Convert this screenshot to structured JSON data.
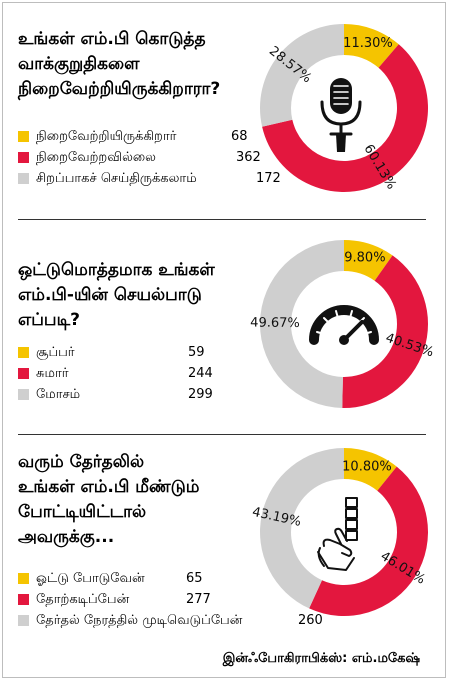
{
  "colors": {
    "yellow": "#f5c400",
    "red": "#e3173e",
    "gray": "#cfcfcf"
  },
  "chart_data": [
    {
      "type": "pie",
      "title": "உங்கள் எம்.பி கொடுத்த\nவாக்குறுதிகளை\nநிறைவேற்றியிருக்கிறாரா?",
      "icon": "microphone-icon",
      "slices": [
        {
          "label": "நிறைவேற்றியிருக்கிறார்",
          "value": 68,
          "percent_label": "11.30%",
          "color": "#f5c400"
        },
        {
          "label": "நிறைவேற்றவில்லை",
          "value": 362,
          "percent_label": "60.13%",
          "color": "#e3173e"
        },
        {
          "label": "சிறப்பாகச் செய்திருக்கலாம்",
          "value": 172,
          "percent_label": "28.57%",
          "color": "#cfcfcf"
        }
      ]
    },
    {
      "type": "pie",
      "title": "ஒட்டுமொத்தமாக உங்கள்\nஎம்.பி-யின் செயல்பாடு\nஎப்படி?",
      "icon": "speedometer-icon",
      "slices": [
        {
          "label": "சூப்பர்",
          "value": 59,
          "percent_label": "9.80%",
          "color": "#f5c400"
        },
        {
          "label": "சுமார்",
          "value": 244,
          "percent_label": "40.53%",
          "color": "#e3173e"
        },
        {
          "label": "மோசம்",
          "value": 299,
          "percent_label": "49.67%",
          "color": "#cfcfcf"
        }
      ]
    },
    {
      "type": "pie",
      "title": "வரும் தேர்தலில்\nஉங்கள் எம்.பி மீண்டும்\nபோட்டியிட்டால்\nஅவருக்கு...",
      "icon": "hand-ballot-icon",
      "slices": [
        {
          "label": "ஓட்டு போடுவேன்",
          "value": 65,
          "percent_label": "10.80%",
          "color": "#f5c400"
        },
        {
          "label": "தோற்கடிப்பேன்",
          "value": 277,
          "percent_label": "46.01%",
          "color": "#e3173e"
        },
        {
          "label": "தேர்தல் நேரத்தில் முடிவெடுப்பேன்",
          "value": 260,
          "percent_label": "43.19%",
          "color": "#cfcfcf"
        }
      ]
    }
  ],
  "credit": "இன்ஃபோகிராபிக்ஸ்: எம்.மகேஷ்"
}
